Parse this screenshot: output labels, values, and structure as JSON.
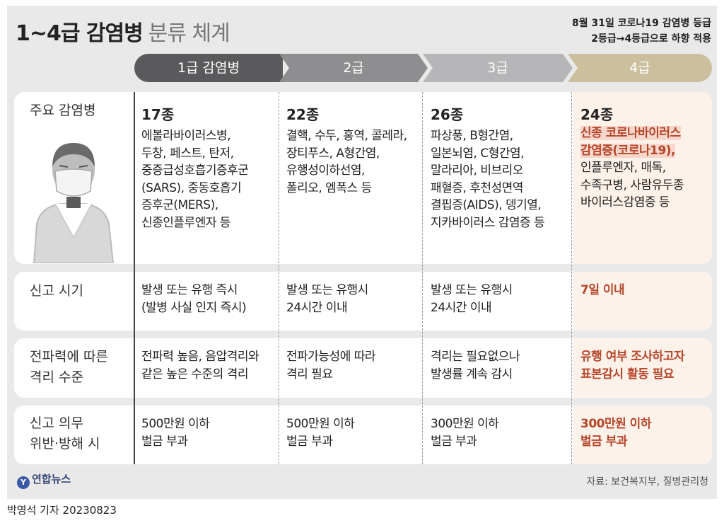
{
  "header": {
    "title_bold": "1~4급 감염병",
    "title_light": "분류 체계",
    "note_line1": "8월 31일 코로나19 감염병 등급",
    "note_line2": "2등급→4등급으로 하향 적용"
  },
  "grades": [
    "1급 감염병",
    "2급",
    "3급",
    "4급"
  ],
  "rows": {
    "diseases": {
      "label": "주요 감염병",
      "g1": {
        "count": "17종",
        "lines": [
          "에볼라바이러스병,",
          "두창, 페스트, 탄저,",
          "중증급성호흡기증후군",
          "(SARS), 중동호흡기",
          "증후군(MERS),",
          "신종인플루엔자 등"
        ]
      },
      "g2": {
        "count": "22종",
        "lines": [
          "결핵, 수두, 홍역, 콜레라,",
          "장티푸스, A형간염,",
          "유행성이하선염,",
          "폴리오, 엠폭스 등"
        ]
      },
      "g3": {
        "count": "26종",
        "lines": [
          "파상풍, B형간염,",
          "일본뇌염, C형간염,",
          "말라리아, 비브리오",
          "패혈증, 후천성면역",
          "결핍증(AIDS), 뎅기열,",
          "지카바이러스 감염증 등"
        ]
      },
      "g4": {
        "count": "24종",
        "highlight": [
          "신종 코로나바이러스",
          "감염증(코로나19),"
        ],
        "lines": [
          "인플루엔자, 매독,",
          "수족구병, 사람유두종",
          "바이러스감염증 등"
        ]
      }
    },
    "report_time": {
      "label": "신고 시기",
      "g1": [
        "발생 또는 유행 즉시",
        "(발병 사실 인지 즉시)"
      ],
      "g2": [
        "발생 또는 유행시",
        "24시간 이내"
      ],
      "g3": [
        "발생 또는 유행시",
        "24시간 이내"
      ],
      "g4": [
        "7일 이내"
      ]
    },
    "isolation": {
      "label": [
        "전파력에 따른",
        "격리 수준"
      ],
      "g1": [
        "전파력 높음, 음압격리와",
        "같은 높은 수준의 격리"
      ],
      "g2": [
        "전파가능성에 따라",
        "격리 필요"
      ],
      "g3": [
        "격리는 필요없으나",
        "발생률 계속 감시"
      ],
      "g4": [
        "유행 여부 조사하고자",
        "표본감시 활동 필요"
      ]
    },
    "penalty": {
      "label": [
        "신고 의무",
        "위반·방해 시"
      ],
      "g1": [
        "500만원 이하",
        "벌금 부과"
      ],
      "g2": [
        "500만원 이하",
        "벌금 부과"
      ],
      "g3": [
        "300만원 이하",
        "벌금 부과"
      ],
      "g4": [
        "300만원 이하",
        "벌금 부과"
      ]
    }
  },
  "footer": {
    "logo_text": "연합뉴스",
    "source": "자료: 보건복지부, 질병관리청",
    "byline": "박영석 기자  20230823"
  },
  "colors": {
    "accent_red": "#b5462a",
    "grade1": "#5a5a5c",
    "grade2": "#8e8e90",
    "grade3": "#b6b6b8",
    "grade4": "#cbbf9e"
  }
}
